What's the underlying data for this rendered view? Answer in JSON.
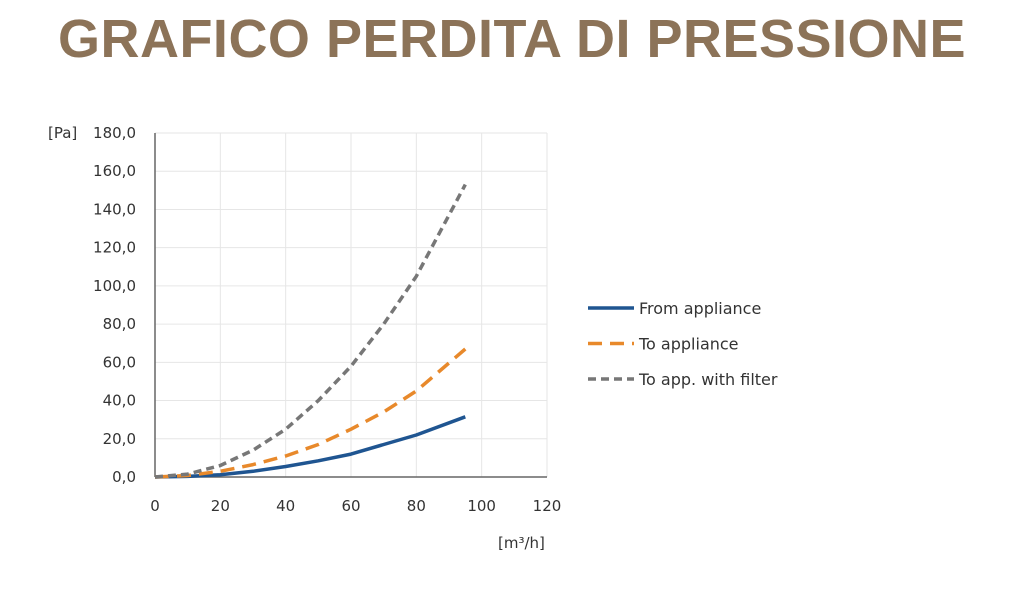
{
  "title": "GRAFICO PERDITA DI PRESSIONE",
  "chart_data": {
    "type": "line",
    "title": "GRAFICO PERDITA DI PRESSIONE",
    "xlabel": "[m³/h]",
    "ylabel": "[Pa]",
    "xlim": [
      0,
      120
    ],
    "ylim": [
      0,
      180
    ],
    "xticks": [
      "0",
      "20",
      "40",
      "60",
      "80",
      "100",
      "120"
    ],
    "yticks": [
      "0,0",
      "20,0",
      "40,0",
      "60,0",
      "80,0",
      "100,0",
      "120,0",
      "140,0",
      "160,0",
      "180,0"
    ],
    "grid": true,
    "legend_position": "right",
    "series": [
      {
        "name": "From appliance",
        "color": "#1f5591",
        "dash": "solid",
        "x": [
          0,
          10,
          20,
          30,
          40,
          50,
          60,
          70,
          80,
          95
        ],
        "y": [
          0,
          0.3,
          1.2,
          3,
          5.5,
          8.5,
          12,
          17,
          22,
          31.5
        ]
      },
      {
        "name": "To appliance",
        "color": "#e8892b",
        "dash": "dashed",
        "x": [
          0,
          10,
          20,
          30,
          40,
          50,
          60,
          70,
          80,
          95
        ],
        "y": [
          0,
          0.8,
          3,
          6.5,
          11,
          17,
          25,
          34,
          45,
          67
        ]
      },
      {
        "name": "To app. with filter",
        "color": "#777777",
        "dash": "dotted",
        "x": [
          0,
          10,
          20,
          30,
          40,
          50,
          60,
          70,
          80,
          95
        ],
        "y": [
          0,
          1.5,
          6,
          14,
          25,
          40,
          58,
          80,
          105,
          153
        ]
      }
    ]
  }
}
